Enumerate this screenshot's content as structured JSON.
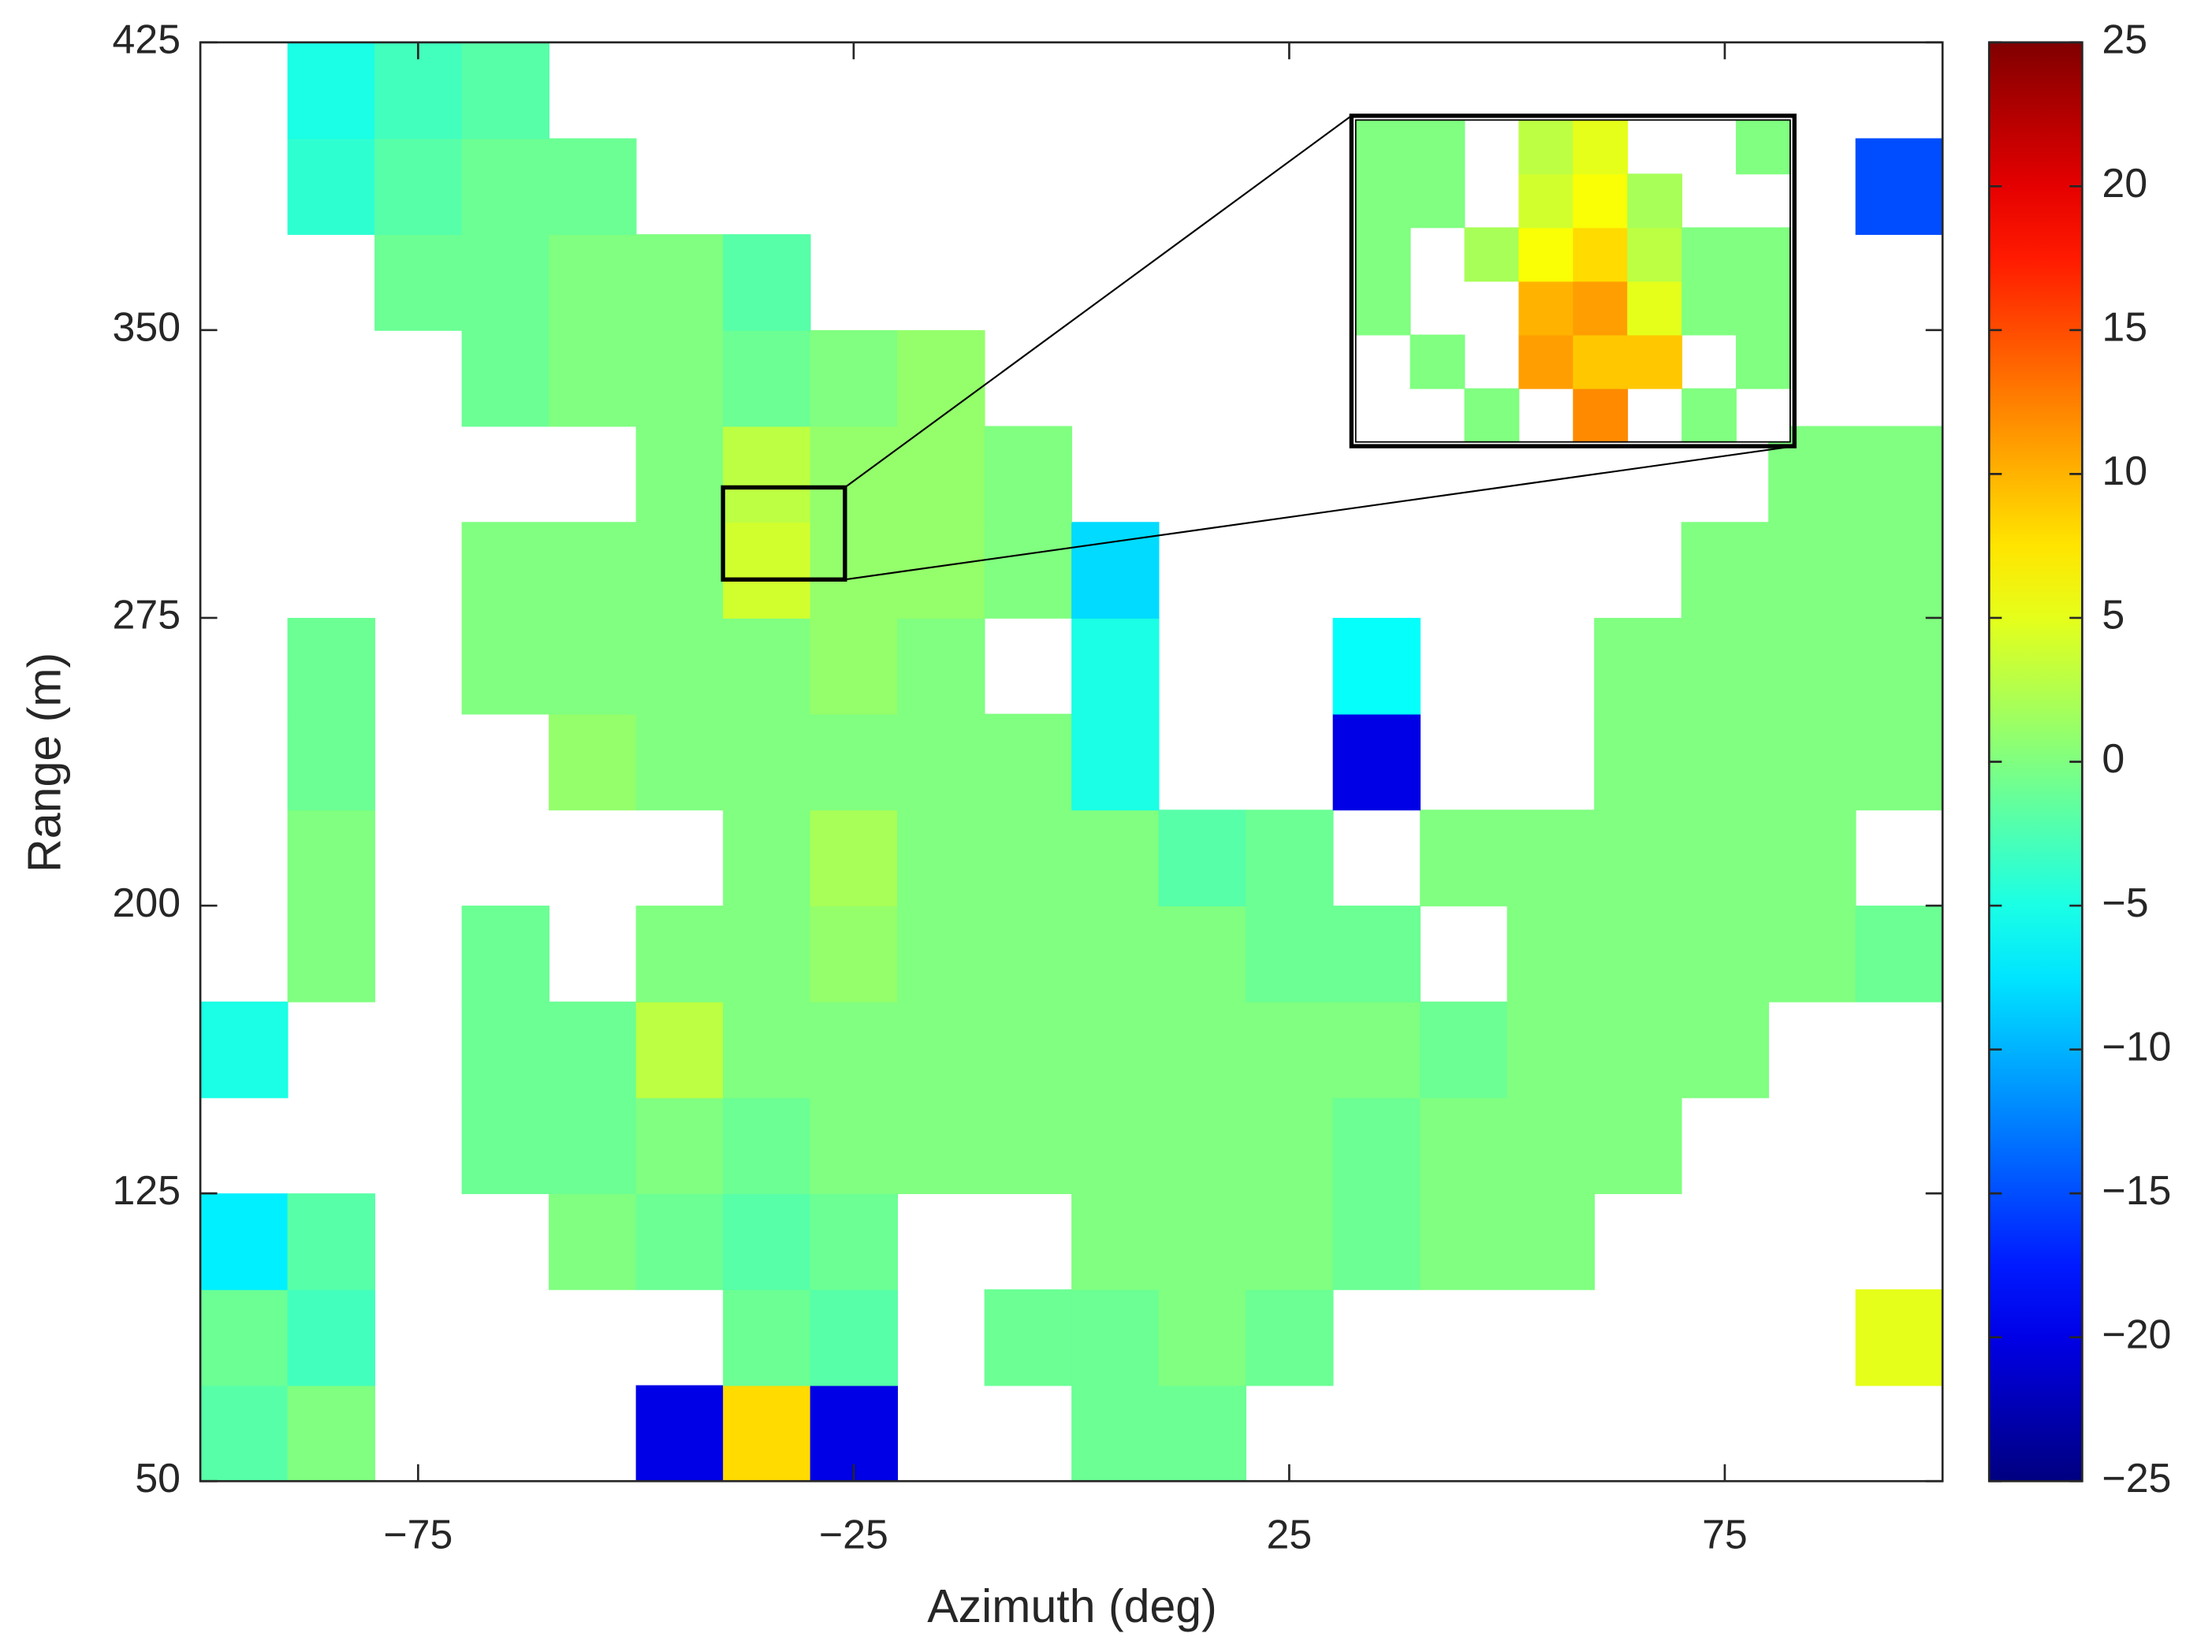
{
  "chart_data": {
    "type": "heatmap",
    "xlabel": "Azimuth (deg)",
    "ylabel": "Range (m)",
    "x": [
      -95,
      -85,
      -75,
      -65,
      -55,
      -45,
      -35,
      -25,
      -15,
      -5,
      5,
      15,
      25,
      35,
      45,
      55,
      65,
      75,
      85,
      95
    ],
    "y": [
      62.5,
      87.5,
      112.5,
      137.5,
      162.5,
      187.5,
      212.5,
      237.5,
      262.5,
      287.5,
      312.5,
      337.5,
      362.5,
      387.5,
      412.5
    ],
    "values": [
      [
        -2,
        0,
        null,
        null,
        null,
        -20,
        8,
        -20,
        null,
        null,
        -1,
        -1,
        null,
        null,
        null,
        null,
        null,
        null,
        null,
        null
      ],
      [
        -1,
        -3,
        null,
        null,
        null,
        null,
        -1,
        -2,
        null,
        -1,
        -1,
        0,
        -1,
        null,
        null,
        null,
        null,
        null,
        null,
        5
      ],
      [
        -7,
        -2,
        null,
        null,
        0,
        -1,
        -2,
        -1,
        null,
        null,
        0,
        0,
        0,
        -1,
        0,
        0,
        null,
        null,
        null,
        null
      ],
      [
        null,
        null,
        null,
        -1,
        -1,
        0,
        -1,
        0,
        0,
        0,
        0,
        0,
        0,
        -1,
        0,
        0,
        0,
        null,
        null,
        null
      ],
      [
        -5,
        null,
        null,
        -1,
        -1,
        3,
        0,
        0,
        0,
        0,
        0,
        0,
        0,
        0,
        -1,
        0,
        0,
        0,
        null,
        null
      ],
      [
        null,
        0,
        null,
        -1,
        null,
        0,
        0,
        1,
        0,
        0,
        0,
        0,
        -1,
        -1,
        null,
        0,
        0,
        0,
        0,
        -1
      ],
      [
        null,
        0,
        null,
        null,
        null,
        null,
        0,
        2,
        0,
        0,
        0,
        -2,
        -1,
        null,
        0,
        0,
        0,
        0,
        0,
        null
      ],
      [
        null,
        -1,
        null,
        null,
        1,
        0,
        0,
        0,
        0,
        0,
        -5,
        null,
        null,
        -20,
        null,
        null,
        0,
        0,
        0,
        0
      ],
      [
        null,
        -1,
        null,
        0,
        0,
        0,
        0,
        1,
        0,
        null,
        -5,
        null,
        null,
        -6,
        null,
        null,
        0,
        0,
        0,
        0
      ],
      [
        null,
        null,
        null,
        0,
        0,
        0,
        4,
        1,
        1,
        0,
        -8,
        null,
        null,
        null,
        null,
        null,
        null,
        0,
        0,
        0
      ],
      [
        null,
        null,
        null,
        null,
        null,
        0,
        3,
        1,
        1,
        0,
        null,
        null,
        null,
        null,
        null,
        null,
        null,
        null,
        0,
        0
      ],
      [
        null,
        null,
        null,
        -1,
        0,
        0,
        -1,
        0,
        1,
        null,
        null,
        null,
        null,
        null,
        null,
        null,
        null,
        null,
        null,
        null
      ],
      [
        null,
        null,
        -1,
        -1,
        0,
        0,
        -2,
        null,
        null,
        null,
        null,
        null,
        null,
        null,
        null,
        null,
        null,
        null,
        null,
        null
      ],
      [
        null,
        -4,
        -2,
        -1,
        -1,
        null,
        null,
        null,
        null,
        null,
        null,
        null,
        null,
        null,
        null,
        null,
        null,
        null,
        null,
        -15
      ],
      [
        null,
        -5,
        -3,
        -2,
        null,
        null,
        null,
        null,
        null,
        null,
        null,
        null,
        null,
        null,
        null,
        null,
        null,
        null,
        null,
        null
      ]
    ],
    "xlim": [
      -100,
      100
    ],
    "ylim": [
      50,
      425
    ],
    "xticks": [
      {
        "value": -75,
        "label": "−75"
      },
      {
        "value": -25,
        "label": "−25"
      },
      25,
      75
    ],
    "yticks": [
      50,
      125,
      200,
      275,
      350,
      425
    ],
    "colormap": "jet",
    "clim": [
      -25,
      25
    ],
    "cticks": [
      {
        "value": -25,
        "label": "−25"
      },
      {
        "value": -20,
        "label": "−20"
      },
      {
        "value": -15,
        "label": "−15"
      },
      {
        "value": -10,
        "label": "−10"
      },
      {
        "value": -5,
        "label": "−5"
      },
      0,
      5,
      10,
      15,
      20,
      25
    ],
    "inset": {
      "xlim": [
        -40,
        -26
      ],
      "ylim": [
        285,
        309
      ],
      "x": [
        -39.125,
        -37.375,
        -35.625,
        -33.875,
        -32.125,
        -30.375,
        -28.625,
        -26.875
      ],
      "y": [
        287,
        291,
        295,
        299,
        303,
        307
      ],
      "values": [
        [
          null,
          null,
          0,
          null,
          12,
          null,
          0,
          null
        ],
        [
          null,
          0,
          null,
          11,
          9,
          9,
          null,
          0
        ],
        [
          0,
          null,
          null,
          10,
          11,
          5,
          0,
          0
        ],
        [
          0,
          null,
          2,
          6,
          8,
          3,
          0,
          0
        ],
        [
          0,
          0,
          null,
          4,
          6,
          2,
          null,
          null
        ],
        [
          0,
          0,
          null,
          3,
          5,
          null,
          null,
          0
        ]
      ]
    }
  }
}
